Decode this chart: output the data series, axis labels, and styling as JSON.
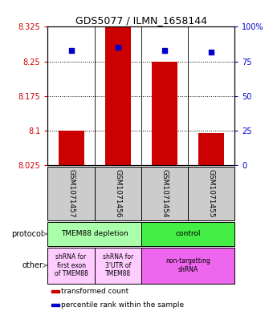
{
  "title": "GDS5077 / ILMN_1658144",
  "samples": [
    "GSM1071457",
    "GSM1071456",
    "GSM1071454",
    "GSM1071455"
  ],
  "bar_values": [
    8.1,
    8.325,
    8.25,
    8.095
  ],
  "bar_bottom": 8.025,
  "percentile_values": [
    83,
    85,
    83,
    82
  ],
  "ylim_left": [
    8.025,
    8.325
  ],
  "ylim_right": [
    0,
    100
  ],
  "yticks_left": [
    8.025,
    8.1,
    8.175,
    8.25,
    8.325
  ],
  "yticks_right": [
    0,
    25,
    50,
    75,
    100
  ],
  "ytick_labels_left": [
    "8.025",
    "8.1",
    "8.175",
    "8.25",
    "8.325"
  ],
  "ytick_labels_right": [
    "0",
    "25",
    "50",
    "75",
    "100%"
  ],
  "bar_color": "#cc0000",
  "dot_color": "#0000cc",
  "bg_color": "#ffffff",
  "sample_bg": "#cccccc",
  "protocol_row": [
    {
      "label": "TMEM88 depletion",
      "span": [
        0,
        2
      ],
      "color": "#aaffaa"
    },
    {
      "label": "control",
      "span": [
        2,
        4
      ],
      "color": "#44ee44"
    }
  ],
  "other_row": [
    {
      "label": "shRNA for\nfirst exon\nof TMEM88",
      "span": [
        0,
        1
      ],
      "color": "#ffccff"
    },
    {
      "label": "shRNA for\n3'UTR of\nTMEM88",
      "span": [
        1,
        2
      ],
      "color": "#ffccff"
    },
    {
      "label": "non-targetting\nshRNA",
      "span": [
        2,
        4
      ],
      "color": "#ee66ee"
    }
  ],
  "legend_items": [
    {
      "color": "#cc0000",
      "label": "transformed count"
    },
    {
      "color": "#0000cc",
      "label": "percentile rank within the sample"
    }
  ],
  "arrow_color": "#888888",
  "left_tick_color": "#cc0000",
  "right_tick_color": "#0000cc"
}
